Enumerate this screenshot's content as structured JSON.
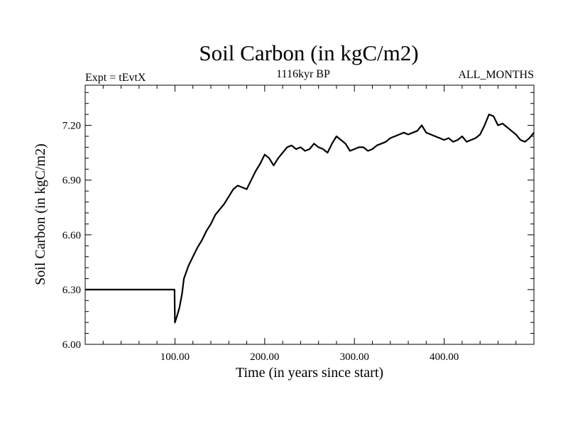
{
  "chart_data": {
    "type": "line",
    "title": "Soil Carbon (in kgC/m2)",
    "left_subtitle": "Expt = tEvtX",
    "center_subtitle": "1116kyr BP",
    "right_subtitle": "ALL_MONTHS",
    "xlabel": "Time (in years since start)",
    "ylabel": "Soil Carbon (in kgC/m2)",
    "xlim": [
      0,
      500
    ],
    "ylim": [
      6.0,
      7.42
    ],
    "x_ticks": [
      {
        "value": 100,
        "label": "100.00"
      },
      {
        "value": 200,
        "label": "200.00"
      },
      {
        "value": 300,
        "label": "300.00"
      },
      {
        "value": 400,
        "label": "400.00"
      }
    ],
    "y_ticks": [
      {
        "value": 6.0,
        "label": "6.00"
      },
      {
        "value": 6.3,
        "label": "6.30"
      },
      {
        "value": 6.6,
        "label": "6.60"
      },
      {
        "value": 6.9,
        "label": "6.90"
      },
      {
        "value": 7.2,
        "label": "7.20"
      }
    ],
    "grid": false,
    "series": [
      {
        "name": "Soil Carbon",
        "color": "#000000",
        "x": [
          0,
          99.5,
          100,
          102,
          105,
          108,
          110,
          115,
          120,
          125,
          130,
          135,
          140,
          145,
          150,
          155,
          160,
          165,
          170,
          175,
          180,
          185,
          190,
          195,
          200,
          205,
          210,
          215,
          220,
          225,
          230,
          235,
          240,
          245,
          250,
          255,
          260,
          265,
          270,
          275,
          280,
          285,
          290,
          295,
          300,
          305,
          310,
          315,
          320,
          325,
          330,
          335,
          340,
          345,
          350,
          355,
          360,
          365,
          370,
          375,
          380,
          385,
          390,
          395,
          400,
          405,
          410,
          415,
          420,
          425,
          430,
          435,
          440,
          445,
          450,
          455,
          460,
          465,
          470,
          475,
          480,
          485,
          490,
          495,
          500
        ],
        "y": [
          6.3,
          6.3,
          6.12,
          6.15,
          6.2,
          6.28,
          6.36,
          6.43,
          6.48,
          6.53,
          6.57,
          6.62,
          6.66,
          6.71,
          6.74,
          6.77,
          6.81,
          6.85,
          6.87,
          6.86,
          6.85,
          6.9,
          6.95,
          6.99,
          7.04,
          7.02,
          6.98,
          7.02,
          7.05,
          7.08,
          7.09,
          7.07,
          7.08,
          7.06,
          7.07,
          7.1,
          7.08,
          7.07,
          7.05,
          7.1,
          7.14,
          7.12,
          7.1,
          7.06,
          7.07,
          7.08,
          7.08,
          7.06,
          7.07,
          7.09,
          7.1,
          7.11,
          7.13,
          7.14,
          7.15,
          7.16,
          7.15,
          7.16,
          7.17,
          7.2,
          7.16,
          7.15,
          7.14,
          7.13,
          7.12,
          7.13,
          7.11,
          7.12,
          7.14,
          7.11,
          7.12,
          7.13,
          7.15,
          7.2,
          7.26,
          7.25,
          7.2,
          7.21,
          7.19,
          7.17,
          7.15,
          7.12,
          7.11,
          7.13,
          7.16
        ]
      }
    ]
  }
}
